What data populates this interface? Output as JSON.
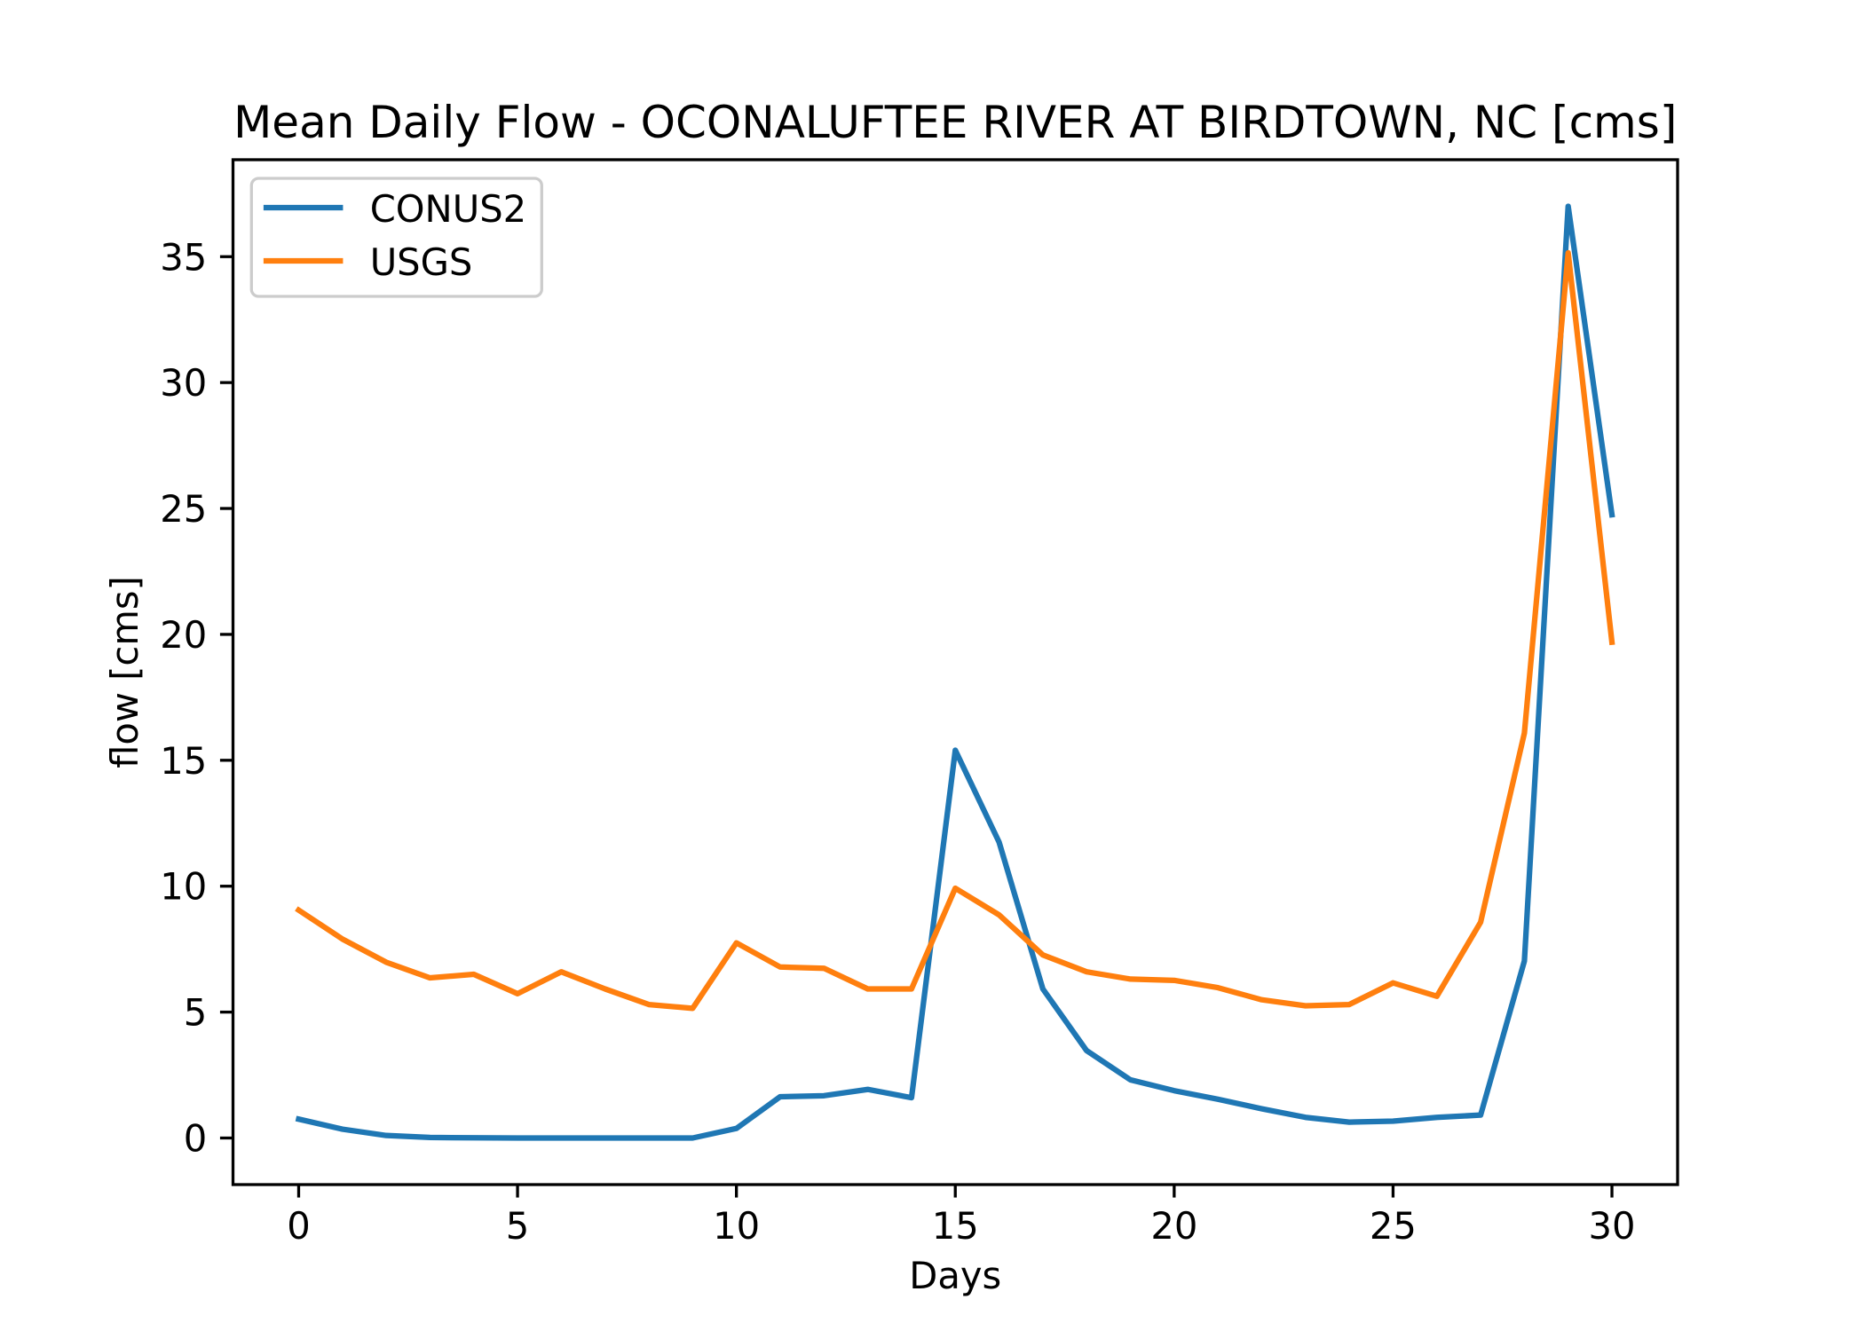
{
  "chart_data": {
    "type": "line",
    "title": "Mean Daily Flow - OCONALUFTEE RIVER AT BIRDTOWN, NC [cms]",
    "xlabel": "Days",
    "ylabel": "flow [cms]",
    "x": [
      0,
      1,
      2,
      3,
      4,
      5,
      6,
      7,
      8,
      9,
      10,
      11,
      12,
      13,
      14,
      15,
      16,
      17,
      18,
      19,
      20,
      21,
      22,
      23,
      24,
      25,
      26,
      27,
      28,
      29,
      30
    ],
    "series": [
      {
        "name": "CONUS2",
        "color": "#1f77b4",
        "values": [
          0.75,
          0.35,
          0.1,
          0.02,
          0.01,
          0,
          0,
          0,
          0,
          0,
          0.38,
          1.64,
          1.68,
          1.93,
          1.6,
          15.4,
          11.75,
          5.92,
          3.47,
          2.31,
          1.88,
          1.54,
          1.16,
          0.82,
          0.63,
          0.67,
          0.82,
          0.91,
          7.03,
          37.0,
          24.75
        ]
      },
      {
        "name": "USGS",
        "color": "#ff7f0e",
        "values": [
          9.05,
          7.9,
          6.98,
          6.36,
          6.5,
          5.73,
          6.6,
          5.92,
          5.3,
          5.15,
          7.75,
          6.79,
          6.74,
          5.92,
          5.92,
          9.92,
          8.86,
          7.27,
          6.6,
          6.31,
          6.26,
          5.97,
          5.49,
          5.25,
          5.3,
          6.16,
          5.63,
          8.57,
          16.08,
          35.15,
          19.69
        ]
      }
    ],
    "xlim": [
      -1.5,
      31.5
    ],
    "ylim": [
      -1.85,
      38.85
    ],
    "xticks": [
      "0",
      "5",
      "10",
      "15",
      "20",
      "25",
      "30"
    ],
    "yticks": [
      "0",
      "5",
      "10",
      "15",
      "20",
      "25",
      "30",
      "35"
    ],
    "grid": false,
    "legend": "top-left"
  }
}
